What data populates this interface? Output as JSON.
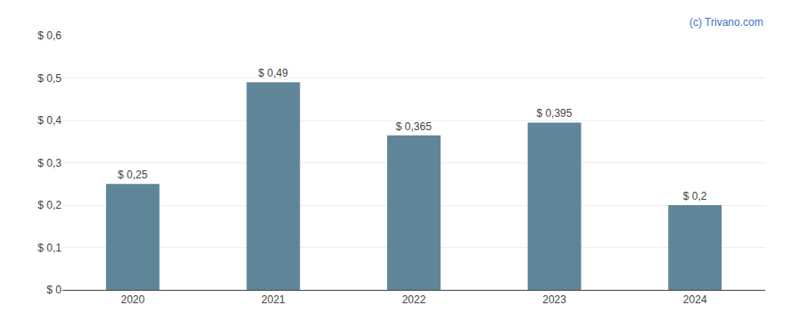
{
  "chart_data": {
    "type": "bar",
    "categories": [
      "2020",
      "2021",
      "2022",
      "2023",
      "2024"
    ],
    "values": [
      0.25,
      0.49,
      0.365,
      0.395,
      0.2
    ],
    "value_labels": [
      "$ 0,25",
      "$ 0,49",
      "$ 0,365",
      "$ 0,395",
      "$ 0,2"
    ],
    "data_labels": true,
    "color": "#5f8598",
    "ylim": [
      0,
      0.6
    ],
    "yticks": [
      {
        "value": 0.0,
        "label": "$ 0"
      },
      {
        "value": 0.1,
        "label": "$ 0,1"
      },
      {
        "value": 0.2,
        "label": "$ 0,2"
      },
      {
        "value": 0.3,
        "label": "$ 0,3"
      },
      {
        "value": 0.4,
        "label": "$ 0,4"
      },
      {
        "value": 0.5,
        "label": "$ 0,5"
      },
      {
        "value": 0.6,
        "label": "$ 0,6"
      }
    ],
    "grid": true,
    "annotations": [
      {
        "text": "(c) Trivano.com",
        "color": "#4472c4"
      }
    ]
  }
}
